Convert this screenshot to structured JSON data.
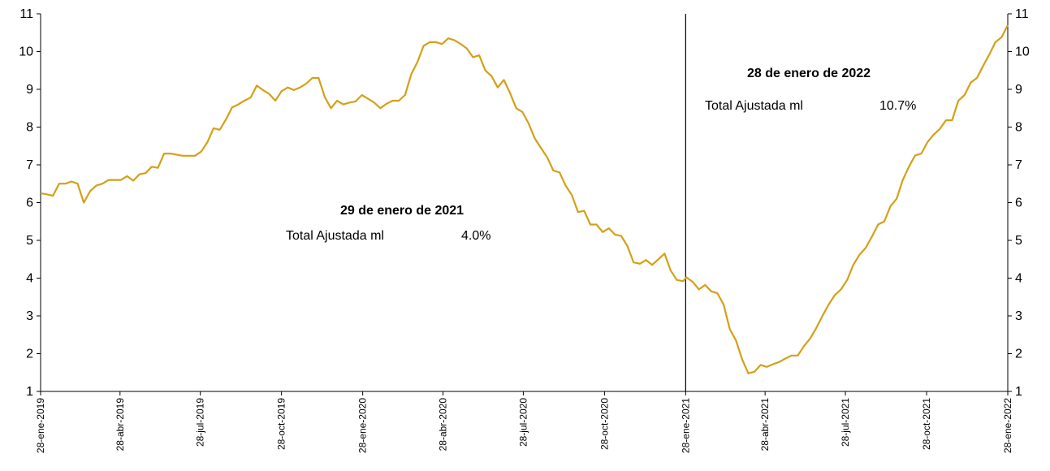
{
  "chart_data": {
    "type": "line",
    "ylim": [
      1,
      11
    ],
    "y_ticks": [
      "1",
      "2",
      "3",
      "4",
      "5",
      "6",
      "7",
      "8",
      "9",
      "10",
      "11"
    ],
    "x_ticks": [
      "28-ene-2019",
      "28-abr-2019",
      "28-jul-2019",
      "28-oct-2019",
      "28-ene-2020",
      "28-abr-2020",
      "28-jul-2020",
      "28-oct-2020",
      "28-ene-2021",
      "28-abr-2021",
      "28-jul-2021",
      "28-oct-2021",
      "28-ene-2022"
    ],
    "x_start": "2019-01-28",
    "x_end": "2022-01-28",
    "grid": false,
    "line_color": "#D4A017",
    "series": [
      {
        "points": [
          [
            "2019-01-28",
            6.25
          ],
          [
            "2019-02-04",
            6.22
          ],
          [
            "2019-02-11",
            6.18
          ],
          [
            "2019-02-18",
            6.5
          ],
          [
            "2019-02-25",
            6.5
          ],
          [
            "2019-03-04",
            6.56
          ],
          [
            "2019-03-11",
            6.5
          ],
          [
            "2019-03-18",
            6.0
          ],
          [
            "2019-03-25",
            6.3
          ],
          [
            "2019-04-01",
            6.45
          ],
          [
            "2019-04-08",
            6.5
          ],
          [
            "2019-04-15",
            6.6
          ],
          [
            "2019-04-22",
            6.6
          ],
          [
            "2019-04-29",
            6.6
          ],
          [
            "2019-05-06",
            6.7
          ],
          [
            "2019-05-13",
            6.58
          ],
          [
            "2019-05-20",
            6.75
          ],
          [
            "2019-05-27",
            6.78
          ],
          [
            "2019-06-03",
            6.95
          ],
          [
            "2019-06-10",
            6.92
          ],
          [
            "2019-06-17",
            7.3
          ],
          [
            "2019-06-24",
            7.3
          ],
          [
            "2019-07-01",
            7.27
          ],
          [
            "2019-07-08",
            7.24
          ],
          [
            "2019-07-15",
            7.24
          ],
          [
            "2019-07-22",
            7.24
          ],
          [
            "2019-07-29",
            7.35
          ],
          [
            "2019-08-05",
            7.6
          ],
          [
            "2019-08-12",
            7.97
          ],
          [
            "2019-08-19",
            7.93
          ],
          [
            "2019-08-26",
            8.2
          ],
          [
            "2019-09-02",
            8.52
          ],
          [
            "2019-09-09",
            8.6
          ],
          [
            "2019-09-16",
            8.7
          ],
          [
            "2019-09-23",
            8.78
          ],
          [
            "2019-09-30",
            9.1
          ],
          [
            "2019-10-07",
            8.98
          ],
          [
            "2019-10-14",
            8.88
          ],
          [
            "2019-10-21",
            8.7
          ],
          [
            "2019-10-28",
            8.95
          ],
          [
            "2019-11-04",
            9.05
          ],
          [
            "2019-11-11",
            8.98
          ],
          [
            "2019-11-18",
            9.05
          ],
          [
            "2019-11-25",
            9.15
          ],
          [
            "2019-12-02",
            9.3
          ],
          [
            "2019-12-09",
            9.3
          ],
          [
            "2019-12-16",
            8.8
          ],
          [
            "2019-12-23",
            8.5
          ],
          [
            "2019-12-30",
            8.7
          ],
          [
            "2020-01-06",
            8.6
          ],
          [
            "2020-01-13",
            8.65
          ],
          [
            "2020-01-20",
            8.68
          ],
          [
            "2020-01-27",
            8.85
          ],
          [
            "2020-02-03",
            8.75
          ],
          [
            "2020-02-10",
            8.65
          ],
          [
            "2020-02-17",
            8.5
          ],
          [
            "2020-02-24",
            8.62
          ],
          [
            "2020-03-02",
            8.7
          ],
          [
            "2020-03-09",
            8.7
          ],
          [
            "2020-03-16",
            8.85
          ],
          [
            "2020-03-23",
            9.4
          ],
          [
            "2020-03-30",
            9.72
          ],
          [
            "2020-04-06",
            10.15
          ],
          [
            "2020-04-13",
            10.25
          ],
          [
            "2020-04-20",
            10.25
          ],
          [
            "2020-04-27",
            10.2
          ],
          [
            "2020-05-04",
            10.35
          ],
          [
            "2020-05-11",
            10.3
          ],
          [
            "2020-05-18",
            10.2
          ],
          [
            "2020-05-25",
            10.08
          ],
          [
            "2020-06-01",
            9.85
          ],
          [
            "2020-06-08",
            9.9
          ],
          [
            "2020-06-15",
            9.5
          ],
          [
            "2020-06-22",
            9.35
          ],
          [
            "2020-06-29",
            9.05
          ],
          [
            "2020-07-06",
            9.25
          ],
          [
            "2020-07-13",
            8.9
          ],
          [
            "2020-07-20",
            8.5
          ],
          [
            "2020-07-27",
            8.4
          ],
          [
            "2020-08-03",
            8.1
          ],
          [
            "2020-08-10",
            7.7
          ],
          [
            "2020-08-17",
            7.45
          ],
          [
            "2020-08-24",
            7.2
          ],
          [
            "2020-08-31",
            6.85
          ],
          [
            "2020-09-07",
            6.8
          ],
          [
            "2020-09-14",
            6.45
          ],
          [
            "2020-09-21",
            6.2
          ],
          [
            "2020-09-28",
            5.75
          ],
          [
            "2020-10-05",
            5.78
          ],
          [
            "2020-10-12",
            5.42
          ],
          [
            "2020-10-19",
            5.42
          ],
          [
            "2020-10-26",
            5.22
          ],
          [
            "2020-11-02",
            5.32
          ],
          [
            "2020-11-09",
            5.15
          ],
          [
            "2020-11-16",
            5.12
          ],
          [
            "2020-11-23",
            4.85
          ],
          [
            "2020-11-30",
            4.42
          ],
          [
            "2020-12-07",
            4.38
          ],
          [
            "2020-12-14",
            4.48
          ],
          [
            "2020-12-21",
            4.35
          ],
          [
            "2020-12-28",
            4.5
          ],
          [
            "2021-01-04",
            4.65
          ],
          [
            "2021-01-11",
            4.2
          ],
          [
            "2021-01-18",
            3.95
          ],
          [
            "2021-01-25",
            3.92
          ],
          [
            "2021-01-29",
            4.02
          ],
          [
            "2021-02-05",
            3.9
          ],
          [
            "2021-02-12",
            3.7
          ],
          [
            "2021-02-19",
            3.82
          ],
          [
            "2021-02-26",
            3.65
          ],
          [
            "2021-03-05",
            3.6
          ],
          [
            "2021-03-12",
            3.3
          ],
          [
            "2021-03-19",
            2.65
          ],
          [
            "2021-03-26",
            2.35
          ],
          [
            "2021-04-02",
            1.85
          ],
          [
            "2021-04-09",
            1.48
          ],
          [
            "2021-04-16",
            1.52
          ],
          [
            "2021-04-23",
            1.7
          ],
          [
            "2021-04-30",
            1.65
          ],
          [
            "2021-05-07",
            1.72
          ],
          [
            "2021-05-14",
            1.78
          ],
          [
            "2021-05-21",
            1.87
          ],
          [
            "2021-05-28",
            1.95
          ],
          [
            "2021-06-04",
            1.95
          ],
          [
            "2021-06-11",
            2.2
          ],
          [
            "2021-06-18",
            2.4
          ],
          [
            "2021-06-25",
            2.68
          ],
          [
            "2021-07-02",
            3.0
          ],
          [
            "2021-07-09",
            3.3
          ],
          [
            "2021-07-16",
            3.55
          ],
          [
            "2021-07-23",
            3.7
          ],
          [
            "2021-07-30",
            3.95
          ],
          [
            "2021-08-06",
            4.35
          ],
          [
            "2021-08-13",
            4.62
          ],
          [
            "2021-08-20",
            4.8
          ],
          [
            "2021-08-27",
            5.1
          ],
          [
            "2021-09-03",
            5.42
          ],
          [
            "2021-09-10",
            5.5
          ],
          [
            "2021-09-17",
            5.9
          ],
          [
            "2021-09-24",
            6.1
          ],
          [
            "2021-10-01",
            6.6
          ],
          [
            "2021-10-08",
            6.95
          ],
          [
            "2021-10-15",
            7.25
          ],
          [
            "2021-10-22",
            7.3
          ],
          [
            "2021-10-29",
            7.6
          ],
          [
            "2021-11-05",
            7.8
          ],
          [
            "2021-11-12",
            7.95
          ],
          [
            "2021-11-19",
            8.18
          ],
          [
            "2021-11-26",
            8.18
          ],
          [
            "2021-12-03",
            8.7
          ],
          [
            "2021-12-10",
            8.85
          ],
          [
            "2021-12-17",
            9.18
          ],
          [
            "2021-12-24",
            9.3
          ],
          [
            "2021-12-31",
            9.62
          ],
          [
            "2022-01-07",
            9.92
          ],
          [
            "2022-01-14",
            10.25
          ],
          [
            "2022-01-21",
            10.38
          ],
          [
            "2022-01-28",
            10.7
          ]
        ]
      }
    ],
    "vertical_marker": "2021-01-28",
    "annotations": [
      {
        "title": "29 de enero de 2021",
        "label": "Total Ajustada ml",
        "value": "4.0%"
      },
      {
        "title": "28 de enero de 2022",
        "label": "Total Ajustada ml",
        "value": "10.7%"
      }
    ]
  }
}
